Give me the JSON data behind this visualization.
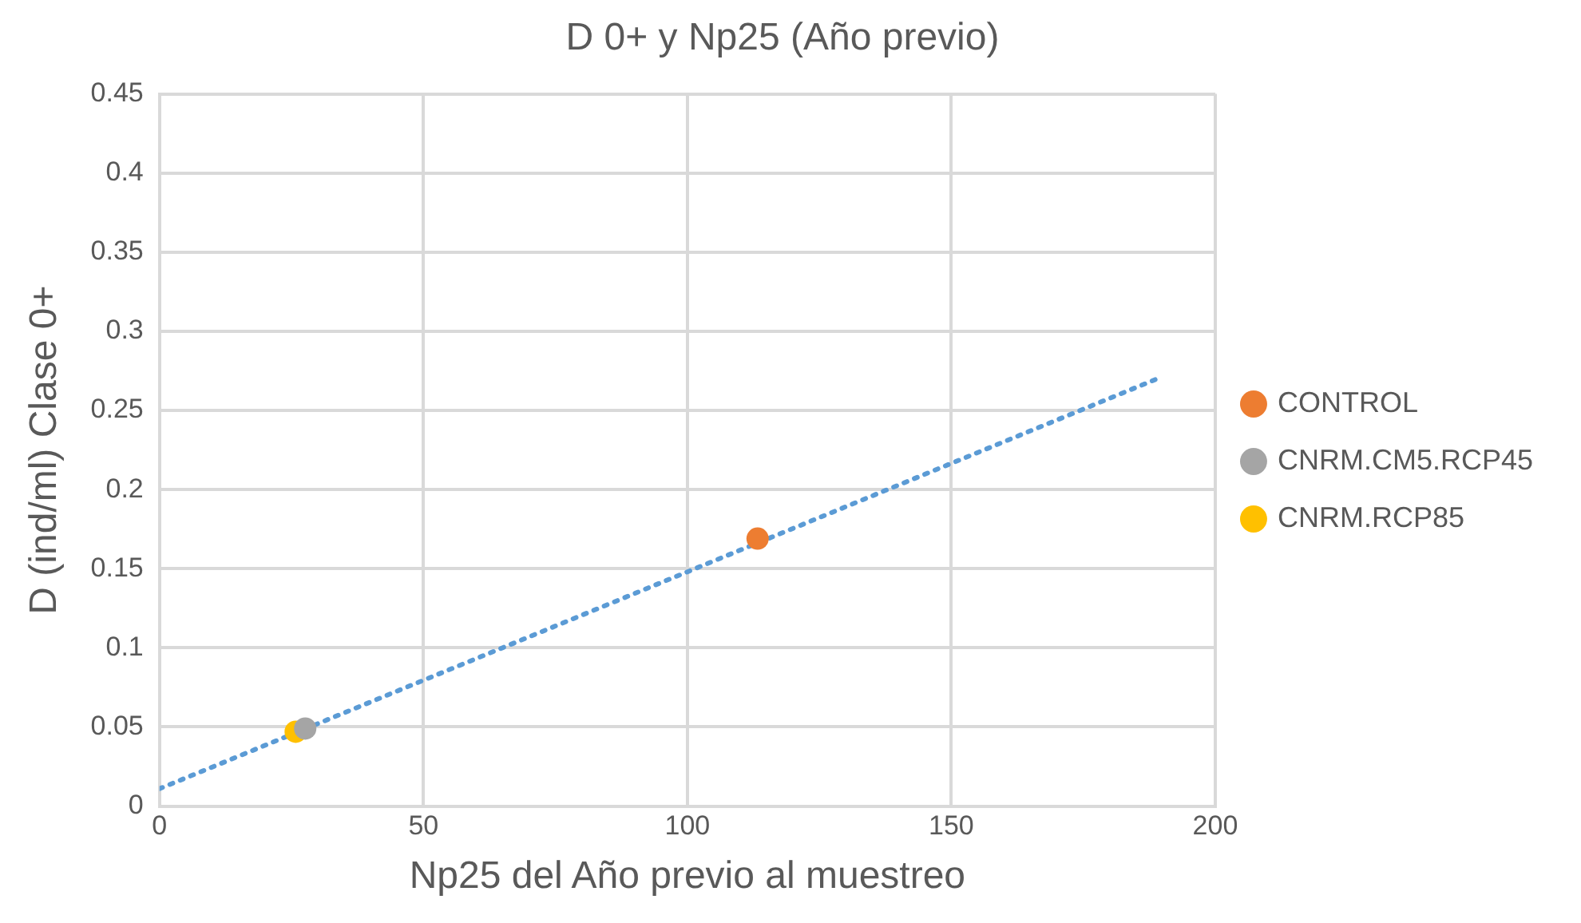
{
  "chart_data": {
    "type": "scatter",
    "title": "D 0+ y Np25 (Año previo)",
    "xlabel": "Np25 del Año previo al muestreo",
    "ylabel": "D (ind/ml) Clase 0+",
    "series": [
      {
        "name": "CONTROL",
        "color": "#ed7d31",
        "x": [
          113.3
        ],
        "values": [
          0.169
        ]
      },
      {
        "name": "CNRM.CM5.RCP45",
        "color": "#a5a5a5",
        "x": [
          27.6
        ],
        "values": [
          0.049
        ]
      },
      {
        "name": "CNRM.RCP85",
        "color": "#ffc000",
        "x": [
          25.8
        ],
        "values": [
          0.047
        ]
      },
      {
        "type": "line",
        "color": "#5b9bd5",
        "line_style": "dotted",
        "marker": "none",
        "x": [
          0,
          189
        ],
        "values": [
          0.011,
          0.27
        ]
      }
    ],
    "marker": "circle",
    "xlim": [
      0,
      200
    ],
    "xticks": [
      0,
      50,
      100,
      150,
      200
    ],
    "ylim": [
      0,
      0.45
    ],
    "yticks": [
      0,
      0.05,
      0.1,
      0.15,
      0.2,
      0.25,
      0.3,
      0.35,
      0.4,
      0.45
    ],
    "grid": true,
    "legend": "right"
  }
}
